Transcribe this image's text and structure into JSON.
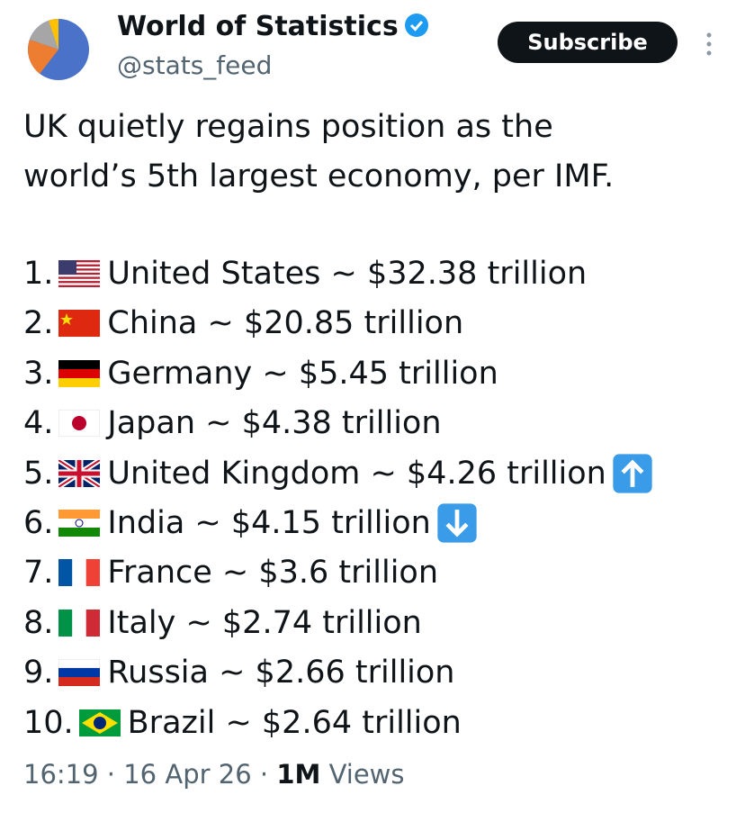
{
  "author": {
    "name": "World of Statistics",
    "handle": "@stats_feed"
  },
  "subscribe_button": "Subscribe",
  "post": {
    "headline": "UK quietly regains position as the world’s 5th largest economy, per IMF.",
    "list": [
      {
        "rank": "1.",
        "text": "United States ~ $32.38 trillion"
      },
      {
        "rank": "2.",
        "text": "China ~ $20.85 trillion"
      },
      {
        "rank": "3.",
        "text": "Germany ~ $5.45 trillion"
      },
      {
        "rank": "4.",
        "text": "Japan ~ $4.38 trillion"
      },
      {
        "rank": "5.",
        "text": "United Kingdom ~ $4.26 trillion"
      },
      {
        "rank": "6.",
        "text": "India ~ $4.15 trillion"
      },
      {
        "rank": "7.",
        "text": "France ~ $3.6 trillion"
      },
      {
        "rank": "8.",
        "text": "Italy ~ $2.74 trillion"
      },
      {
        "rank": "9.",
        "text": "Russia ~ $2.66 trillion"
      },
      {
        "rank": "10.",
        "text": "Brazil ~ $2.64 trillion"
      }
    ]
  },
  "footer": {
    "time": "16:19",
    "separator": "·",
    "date": "16 Apr 26",
    "views_count": "1M",
    "views_label": "Views"
  }
}
